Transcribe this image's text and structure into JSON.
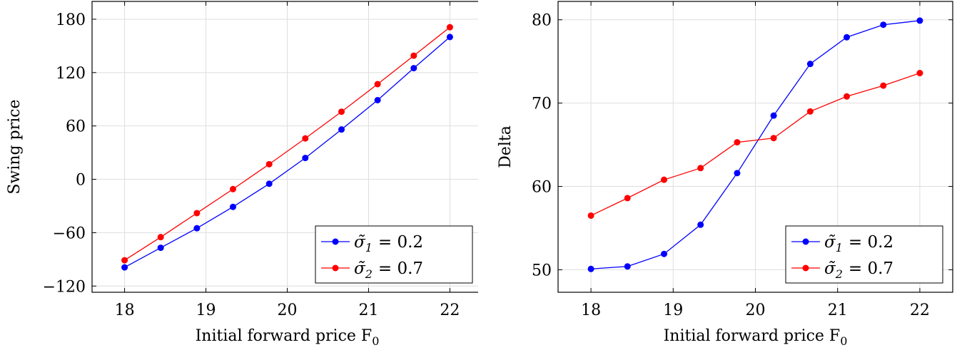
{
  "chart_data": [
    {
      "type": "line",
      "title": "",
      "xlabel": "Initial forward price F",
      "xlabel_sub": "0",
      "ylabel": "Swing price",
      "xlim": [
        17.6,
        22.4
      ],
      "ylim": [
        -127,
        200
      ],
      "x_ticks": [
        18,
        19,
        20,
        21,
        22
      ],
      "y_ticks": [
        -120,
        -60,
        0,
        60,
        120,
        180
      ],
      "x_tick_labels": [
        "18",
        "19",
        "20",
        "21",
        "22"
      ],
      "y_tick_labels": [
        "−120",
        "−60",
        "0",
        "60",
        "120",
        "180"
      ],
      "grid": true,
      "legend_position": "bottom-right",
      "x": [
        18,
        18.444,
        18.889,
        19.333,
        19.778,
        20.222,
        20.667,
        21.111,
        21.556,
        22
      ],
      "series": [
        {
          "name": "σ̃1 = 0.2",
          "legend_base": "σ̃",
          "legend_sub": "1",
          "legend_value": "= 0.2",
          "color": "#0000ff",
          "values": [
            -99,
            -77,
            -55,
            -31,
            -5,
            24,
            56,
            89,
            125,
            160
          ]
        },
        {
          "name": "σ̃2 = 0.7",
          "legend_base": "σ̃",
          "legend_sub": "2",
          "legend_value": "= 0.7",
          "color": "#ff0000",
          "values": [
            -91,
            -65,
            -38,
            -11,
            17,
            46,
            76,
            107,
            139,
            171
          ]
        }
      ]
    },
    {
      "type": "line",
      "title": "",
      "xlabel": "Initial forward price F",
      "xlabel_sub": "0",
      "ylabel": "Delta",
      "xlim": [
        17.6,
        22.4
      ],
      "ylim": [
        47.3,
        82.2
      ],
      "x_ticks": [
        18,
        19,
        20,
        21,
        22
      ],
      "y_ticks": [
        50,
        60,
        70,
        80
      ],
      "x_tick_labels": [
        "18",
        "19",
        "20",
        "21",
        "22"
      ],
      "y_tick_labels": [
        "50",
        "60",
        "70",
        "80"
      ],
      "grid": true,
      "legend_position": "bottom-right",
      "x": [
        18,
        18.444,
        18.889,
        19.333,
        19.778,
        20.222,
        20.667,
        21.111,
        21.556,
        22
      ],
      "series": [
        {
          "name": "σ̃1 = 0.2",
          "legend_base": "σ̃",
          "legend_sub": "1",
          "legend_value": "= 0.2",
          "color": "#0000ff",
          "values": [
            50.1,
            50.4,
            51.9,
            55.4,
            61.6,
            68.5,
            74.7,
            77.9,
            79.4,
            79.9
          ]
        },
        {
          "name": "σ̃2 = 0.7",
          "legend_base": "σ̃",
          "legend_sub": "2",
          "legend_value": "= 0.7",
          "color": "#ff0000",
          "values": [
            56.5,
            58.6,
            60.8,
            62.2,
            65.3,
            65.8,
            69.0,
            70.8,
            72.1,
            73.6
          ]
        }
      ]
    }
  ]
}
